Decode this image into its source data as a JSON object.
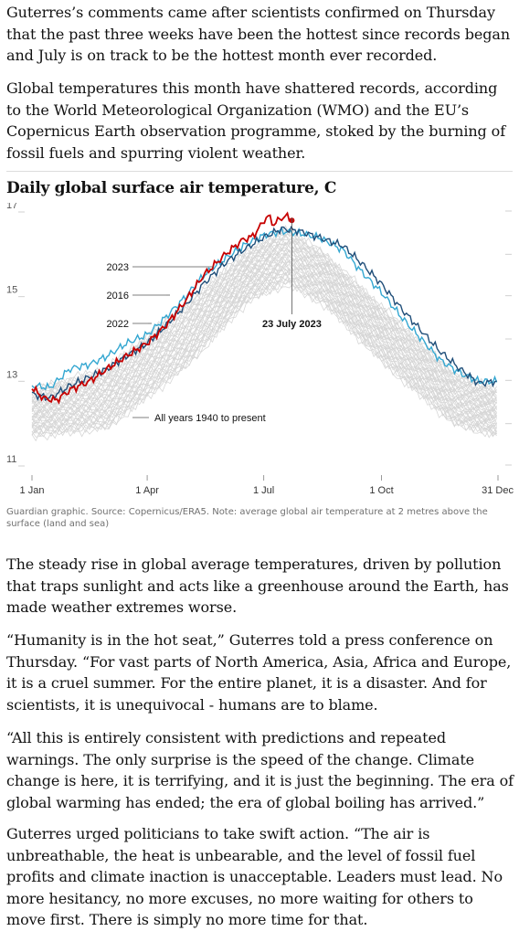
{
  "article": {
    "paragraphs": [
      "Guterres’s comments came after scientists confirmed on Thursday that the past three weeks have been the hottest since records began and July is on track to be the hottest month ever recorded.",
      "Global temperatures this month have shattered records, according to the World Meteorological Organization (WMO) and the EU’s Copernicus Earth observation programme, stoked by the burning of fossil fuels and spurring violent weather.",
      "The steady rise in global average temperatures, driven by pollution that traps sunlight and acts like a greenhouse around the Earth, has made weather extremes worse.",
      "“Humanity is in the hot seat,” Guterres told a press conference on Thursday. “For vast parts of North America, Asia, Africa and Europe, it is a cruel summer. For the entire planet, it is a disaster. And for scientists, it is unequivocal - humans are to blame.",
      "“All this is entirely consistent with predictions and repeated warnings. The only surprise is the speed of the change. Climate change is here, it is terrifying, and it is just the beginning. The era of global warming has ended; the era of global boiling has arrived.”",
      "Guterres urged politicians to take swift action. “The air is unbreathable, the heat is unbearable, and the level of fossil fuel profits and climate inaction is unacceptable. Leaders must lead. No more hesitancy, no more excuses, no more waiting for others to move first. There is simply no more time for that."
    ],
    "chart_caption": "Guardian graphic. Source: Copernicus/ERA5. Note: average global air temperature at 2 metres above the surface (land and sea)"
  },
  "chart_data": {
    "type": "line",
    "title": "Daily global surface air temperature, C",
    "xlabel": "",
    "ylabel": "",
    "x_ticks": [
      "1 Jan",
      "1 Apr",
      "1 Jul",
      "1 Oct",
      "31 Dec"
    ],
    "x_tick_days": [
      1,
      91,
      182,
      274,
      365
    ],
    "y_ticks": [
      11,
      13,
      15,
      17
    ],
    "ylim": [
      11,
      17
    ],
    "xlim": [
      1,
      365
    ],
    "grid": false,
    "background_band": {
      "name": "All years 1940 to present",
      "upper": [
        [
          1,
          12.8
        ],
        [
          60,
          13.3
        ],
        [
          120,
          14.8
        ],
        [
          170,
          16.1
        ],
        [
          200,
          16.6
        ],
        [
          230,
          16.0
        ],
        [
          280,
          14.6
        ],
        [
          330,
          13.2
        ],
        [
          365,
          12.8
        ]
      ],
      "lower": [
        [
          1,
          11.7
        ],
        [
          60,
          11.9
        ],
        [
          120,
          13.3
        ],
        [
          170,
          14.9
        ],
        [
          200,
          15.3
        ],
        [
          230,
          14.8
        ],
        [
          280,
          13.3
        ],
        [
          330,
          12.0
        ],
        [
          365,
          11.7
        ]
      ]
    },
    "series": [
      {
        "name": "2016",
        "color": "#34a7d1",
        "points": [
          [
            1,
            12.9
          ],
          [
            15,
            12.85
          ],
          [
            31,
            13.3
          ],
          [
            46,
            13.4
          ],
          [
            60,
            13.6
          ],
          [
            75,
            13.9
          ],
          [
            91,
            14.1
          ],
          [
            105,
            14.5
          ],
          [
            121,
            15.0
          ],
          [
            135,
            15.5
          ],
          [
            152,
            15.9
          ],
          [
            166,
            16.2
          ],
          [
            182,
            16.45
          ],
          [
            196,
            16.55
          ],
          [
            210,
            16.5
          ],
          [
            225,
            16.4
          ],
          [
            244,
            16.1
          ],
          [
            258,
            15.6
          ],
          [
            274,
            15.1
          ],
          [
            290,
            14.5
          ],
          [
            305,
            14.0
          ],
          [
            320,
            13.5
          ],
          [
            335,
            13.2
          ],
          [
            350,
            13.0
          ],
          [
            365,
            13.0
          ]
        ]
      },
      {
        "name": "2022",
        "color": "#1f4e79",
        "points": [
          [
            1,
            12.7
          ],
          [
            15,
            12.6
          ],
          [
            31,
            12.9
          ],
          [
            46,
            13.1
          ],
          [
            60,
            13.3
          ],
          [
            75,
            13.6
          ],
          [
            91,
            13.9
          ],
          [
            105,
            14.3
          ],
          [
            121,
            14.8
          ],
          [
            135,
            15.3
          ],
          [
            152,
            15.8
          ],
          [
            166,
            16.1
          ],
          [
            182,
            16.4
          ],
          [
            196,
            16.6
          ],
          [
            210,
            16.55
          ],
          [
            225,
            16.4
          ],
          [
            244,
            16.2
          ],
          [
            258,
            15.8
          ],
          [
            274,
            15.3
          ],
          [
            290,
            14.7
          ],
          [
            305,
            14.2
          ],
          [
            320,
            13.7
          ],
          [
            335,
            13.3
          ],
          [
            350,
            12.95
          ],
          [
            365,
            13.0
          ]
        ]
      },
      {
        "name": "2023",
        "color": "#c70000",
        "points": [
          [
            1,
            12.85
          ],
          [
            10,
            12.6
          ],
          [
            20,
            12.55
          ],
          [
            31,
            12.8
          ],
          [
            46,
            13.0
          ],
          [
            60,
            13.3
          ],
          [
            75,
            13.6
          ],
          [
            91,
            13.9
          ],
          [
            105,
            14.3
          ],
          [
            121,
            14.9
          ],
          [
            135,
            15.5
          ],
          [
            152,
            16.0
          ],
          [
            160,
            16.2
          ],
          [
            166,
            16.35
          ],
          [
            172,
            16.4
          ],
          [
            177,
            16.55
          ],
          [
            182,
            16.8
          ],
          [
            186,
            16.9
          ],
          [
            190,
            16.7
          ],
          [
            195,
            16.85
          ],
          [
            200,
            16.9
          ],
          [
            204,
            16.8
          ]
        ]
      }
    ],
    "annotations": [
      {
        "text": "2023",
        "series": "2023"
      },
      {
        "text": "2016",
        "series": "2016"
      },
      {
        "text": "2022",
        "series": "2022"
      },
      {
        "text": "23 July 2023",
        "day": 204,
        "value": 16.95
      },
      {
        "text": "All years 1940 to present"
      }
    ]
  },
  "colors": {
    "band": "#d6d6d6",
    "text": "#121212",
    "axis": "#9a9a9a"
  }
}
